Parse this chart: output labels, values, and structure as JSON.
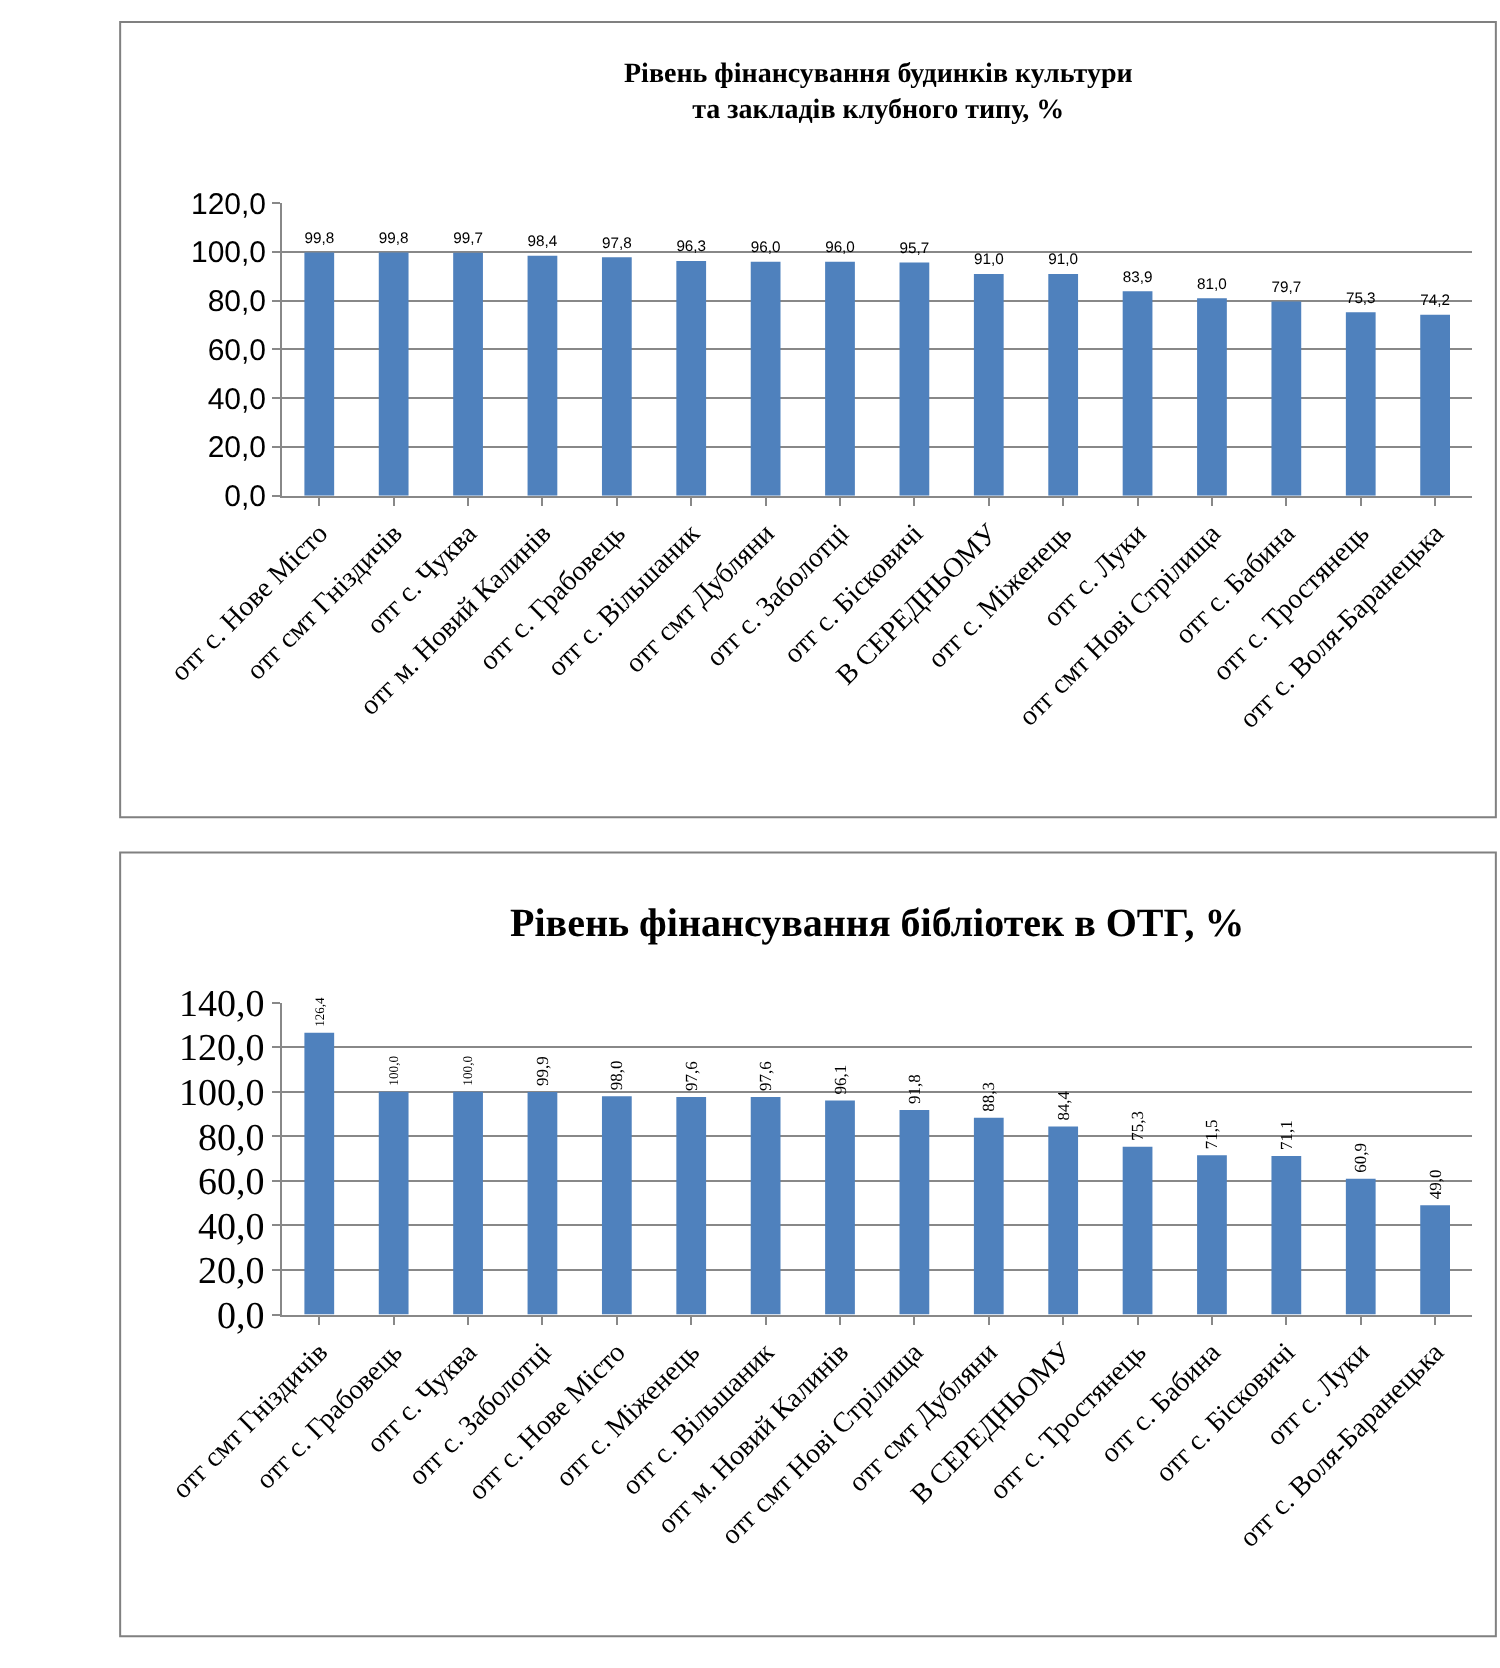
{
  "chart_data": [
    {
      "type": "bar",
      "title": "Рівень фінансування будинків культури\nта закладів клубного типу, %",
      "categories": [
        "отг с. Нове Місто",
        "отг смт Гніздичів",
        "отг с. Чуква",
        "отг м. Новий Калинів",
        "отг с. Грабовець",
        "отг с. Вільшаник",
        "отг смт Дубляни",
        "отг с. Заболотці",
        "отг с. Бісковичі",
        "В СЕРЕДНЬОМУ",
        "отг с. Міженець",
        "отг с. Луки",
        "отг смт Нові Стрілища",
        "отг с. Бабина",
        "отг с. Тростянець",
        "отг с. Воля-Баранецька"
      ],
      "values": [
        99.8,
        99.8,
        99.7,
        98.4,
        97.8,
        96.3,
        96.0,
        96.0,
        95.7,
        91.0,
        91.0,
        83.9,
        81.0,
        79.7,
        75.3,
        74.2
      ],
      "value_labels": [
        "99,8",
        "99,8",
        "99,7",
        "98,4",
        "97,8",
        "96,3",
        "96,0",
        "96,0",
        "95,7",
        "91,0",
        "91,0",
        "83,9",
        "81,0",
        "79,7",
        "75,3",
        "74,2"
      ],
      "color": "#4f81bd",
      "ylim": [
        0,
        120
      ],
      "yticks": [
        {
          "value": 0,
          "label": "0,0"
        },
        {
          "value": 20,
          "label": "20,0"
        },
        {
          "value": 40,
          "label": "40,0"
        },
        {
          "value": 60,
          "label": "60,0"
        },
        {
          "value": 80,
          "label": "80,0"
        },
        {
          "value": 100,
          "label": "100,0"
        },
        {
          "value": 120,
          "label": "120,0"
        }
      ],
      "grid": "y"
    },
    {
      "type": "bar",
      "title": "Рівень фінансування бібліотек в ОТГ, %",
      "categories": [
        "отг смт Гніздичів",
        "отг с. Грабовець",
        "отг с. Чуква",
        "отг с. Заболотці",
        "отг с. Нове Місто",
        "отг с. Міженець",
        "отг с. Вільшаник",
        "отг м. Новий Калинів",
        "отг смт Нові Стрілища",
        "отг смт Дубляни",
        "В СЕРЕДНЬОМУ",
        "отг с. Тростянець",
        "отг с. Бабина",
        "отг с. Бісковичі",
        "отг с. Луки",
        "отг с. Воля-Баранецька"
      ],
      "values": [
        126.4,
        100.0,
        100.0,
        99.9,
        98.0,
        97.6,
        97.6,
        96.1,
        91.8,
        88.3,
        84.4,
        75.3,
        71.5,
        71.1,
        60.9,
        49.0
      ],
      "value_labels": [
        "126,4",
        "100,0",
        "100,0",
        "99,9",
        "98,0",
        "97,6",
        "97,6",
        "96,1",
        "91,8",
        "88,3",
        "84,4",
        "75,3",
        "71,5",
        "71,1",
        "60,9",
        "49,0"
      ],
      "color": "#4f81bd",
      "ylim": [
        0,
        140
      ],
      "yticks": [
        {
          "value": 0,
          "label": "0,0"
        },
        {
          "value": 20,
          "label": "20,0"
        },
        {
          "value": 40,
          "label": "40,0"
        },
        {
          "value": 60,
          "label": "60,0"
        },
        {
          "value": 80,
          "label": "80,0"
        },
        {
          "value": 100,
          "label": "100,0"
        },
        {
          "value": 120,
          "label": "120,0"
        },
        {
          "value": 140,
          "label": "140,0"
        }
      ],
      "grid": "y"
    }
  ]
}
